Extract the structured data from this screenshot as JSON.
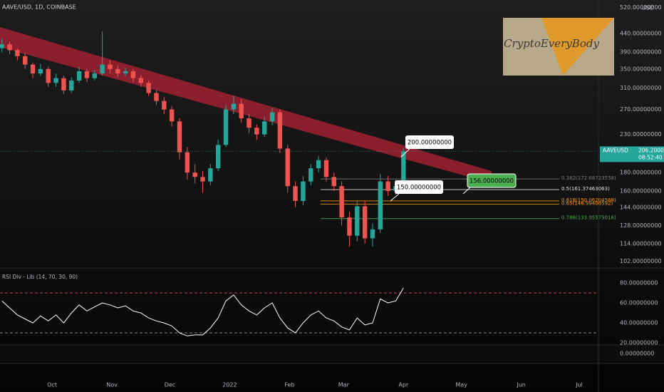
{
  "chart_data": {
    "type": "candlestick",
    "title": "AAVE/USD, 1D, COINBASE",
    "currency": "USD",
    "log_scale": true,
    "up_color": "#26a69a",
    "down_color": "#ef5350",
    "xlim": [
      -27,
      283
    ],
    "xticks": [
      {
        "value": 0,
        "label": "Oct"
      },
      {
        "value": 31,
        "label": "Nov"
      },
      {
        "value": 61,
        "label": "Dec"
      },
      {
        "value": 92,
        "label": "2022"
      },
      {
        "value": 123,
        "label": "Feb"
      },
      {
        "value": 151,
        "label": "Mar"
      },
      {
        "value": 182,
        "label": "Apr"
      },
      {
        "value": 212,
        "label": "May"
      },
      {
        "value": 243,
        "label": "Jun"
      },
      {
        "value": 273,
        "label": "Jul"
      }
    ],
    "ylim": [
      98,
      545
    ],
    "yticks": [
      {
        "value": 520,
        "label": "520.00000000"
      },
      {
        "value": 440,
        "label": "440.00000000"
      },
      {
        "value": 390,
        "label": "390.00000000"
      },
      {
        "value": 350,
        "label": "350.00000000"
      },
      {
        "value": 310,
        "label": "310.00000000"
      },
      {
        "value": 270,
        "label": "270.00000000"
      },
      {
        "value": 230,
        "label": "230.00000000"
      },
      {
        "value": 180,
        "label": "180.00000000"
      },
      {
        "value": 160,
        "label": "160.00000000"
      },
      {
        "value": 144,
        "label": "144.00000000"
      },
      {
        "value": 128,
        "label": "128.00000000"
      },
      {
        "value": 114,
        "label": "114.00000000"
      },
      {
        "value": 102,
        "label": "102.00000000"
      }
    ],
    "x": [
      -26,
      -22,
      -18,
      -14,
      -10,
      -6,
      -2,
      2,
      6,
      10,
      14,
      18,
      22,
      26,
      30,
      34,
      38,
      42,
      46,
      50,
      54,
      58,
      62,
      66,
      70,
      74,
      78,
      82,
      86,
      90,
      94,
      98,
      102,
      106,
      110,
      114,
      118,
      122,
      126,
      130,
      134,
      138,
      142,
      146,
      150,
      154,
      158,
      162,
      166,
      170,
      174,
      178,
      182
    ],
    "open": [
      400,
      410,
      395,
      380,
      360,
      340,
      350,
      320,
      330,
      305,
      325,
      345,
      330,
      340,
      360,
      350,
      340,
      345,
      330,
      320,
      300,
      285,
      270,
      250,
      205,
      180,
      175,
      170,
      185,
      215,
      270,
      280,
      255,
      240,
      230,
      250,
      265,
      210,
      165,
      150,
      170,
      185,
      195,
      175,
      165,
      135,
      120,
      145,
      118,
      125,
      170,
      160,
      165
    ],
    "high": [
      425,
      418,
      400,
      388,
      365,
      362,
      355,
      340,
      335,
      332,
      355,
      350,
      348,
      445,
      370,
      358,
      352,
      350,
      336,
      325,
      306,
      292,
      276,
      255,
      212,
      190,
      182,
      190,
      222,
      278,
      295,
      288,
      262,
      245,
      258,
      272,
      270,
      215,
      170,
      176,
      190,
      200,
      198,
      180,
      170,
      140,
      150,
      150,
      130,
      178,
      176,
      172,
      210
    ],
    "low": [
      390,
      385,
      370,
      350,
      330,
      335,
      312,
      312,
      298,
      300,
      320,
      322,
      325,
      335,
      340,
      332,
      334,
      322,
      312,
      294,
      278,
      262,
      242,
      196,
      172,
      168,
      158,
      166,
      182,
      212,
      262,
      248,
      232,
      222,
      226,
      244,
      204,
      158,
      144,
      146,
      166,
      180,
      170,
      160,
      128,
      112,
      116,
      114,
      112,
      122,
      155,
      156,
      162
    ],
    "close": [
      410,
      395,
      380,
      360,
      340,
      350,
      320,
      330,
      305,
      325,
      345,
      330,
      340,
      360,
      350,
      340,
      345,
      330,
      320,
      300,
      285,
      270,
      250,
      205,
      180,
      175,
      170,
      185,
      215,
      270,
      280,
      255,
      240,
      230,
      250,
      265,
      210,
      165,
      150,
      170,
      185,
      195,
      175,
      165,
      135,
      120,
      145,
      118,
      125,
      170,
      160,
      165,
      206.2
    ],
    "last_price": {
      "value": 206.2,
      "label": "206.20000000"
    },
    "symbol_tag": "AAVEUSD",
    "countdown": "08:52:40",
    "watermark": "CryptoEveryBody",
    "annotations": [
      "200.00000000",
      "150.00000000",
      "156.00000000"
    ],
    "fib_levels": [
      {
        "price": 172.68723558,
        "label": "0.382(172.68723558)",
        "color": "#787b86"
      },
      {
        "price": 161.37463063,
        "label": "0.5(161.37463063)",
        "color": "#e0e0e0"
      },
      {
        "price": 150.06204568,
        "label": "0.618(150.06204568)",
        "color": "#ff9800"
      },
      {
        "price": 146.99408592,
        "label": "0.65(146.99408592)",
        "color": "#ff9800"
      },
      {
        "price": 133.95575016,
        "label": "0.786(133.95575016)",
        "color": "#4caf50"
      }
    ],
    "rsi": {
      "legend": "RSI Div - Lib (14, 70, 30, 90)",
      "color": "#ffffff",
      "ylim": [
        17.9,
        88.6
      ],
      "yticks": [
        {
          "value": 80,
          "label": "80.00000000"
        },
        {
          "value": 60,
          "label": "60.00000000"
        },
        {
          "value": 40,
          "label": "40.00000000"
        },
        {
          "value": 20,
          "label": "20.00000000"
        }
      ],
      "overbought": 70,
      "oversold": 30,
      "values": [
        62,
        55,
        48,
        44,
        40,
        47,
        42,
        48,
        40,
        50,
        58,
        52,
        56,
        60,
        58,
        55,
        57,
        52,
        50,
        45,
        42,
        40,
        37,
        30,
        27,
        28,
        28,
        35,
        45,
        62,
        68,
        58,
        52,
        48,
        55,
        60,
        45,
        35,
        30,
        40,
        48,
        52,
        45,
        42,
        36,
        33,
        45,
        38,
        40,
        64,
        60,
        62,
        75
      ]
    },
    "lower_pane": {
      "yticks": [
        {
          "value": 0,
          "label": "0.00000000"
        }
      ]
    }
  }
}
